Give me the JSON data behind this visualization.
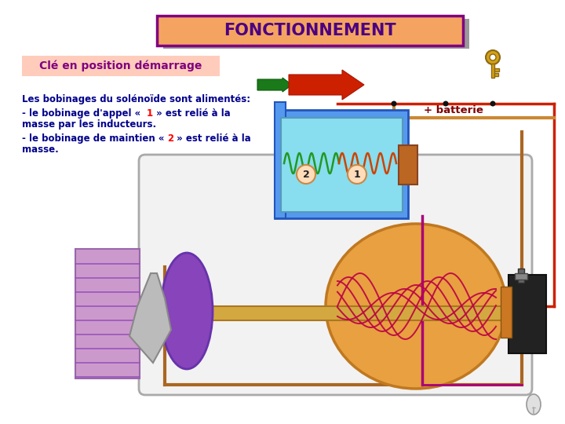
{
  "title": "FONCTIONNEMENT",
  "title_bg": "#F4A460",
  "title_border": "#800080",
  "title_text_color": "#4B0082",
  "subtitle": "Clé en position démarrage",
  "subtitle_bg": "#FFCCBB",
  "subtitle_text_color": "#800080",
  "line1": "Les bobinages du solénoïde sont alimentés:",
  "line2a": "- le bobinage d'appel « ",
  "line2b": "1",
  "line2c": " » est relié à la",
  "line3": "masse par les inducteurs.",
  "line4a": "- le bobinage de maintien « ",
  "line4b": "2",
  "line4c": " » est relié à la",
  "line5": "masse.",
  "batterie_label": "+ batterie",
  "bg_color": "#FFFFFF",
  "text_color": "#00008B",
  "num_color": "#FF0000"
}
